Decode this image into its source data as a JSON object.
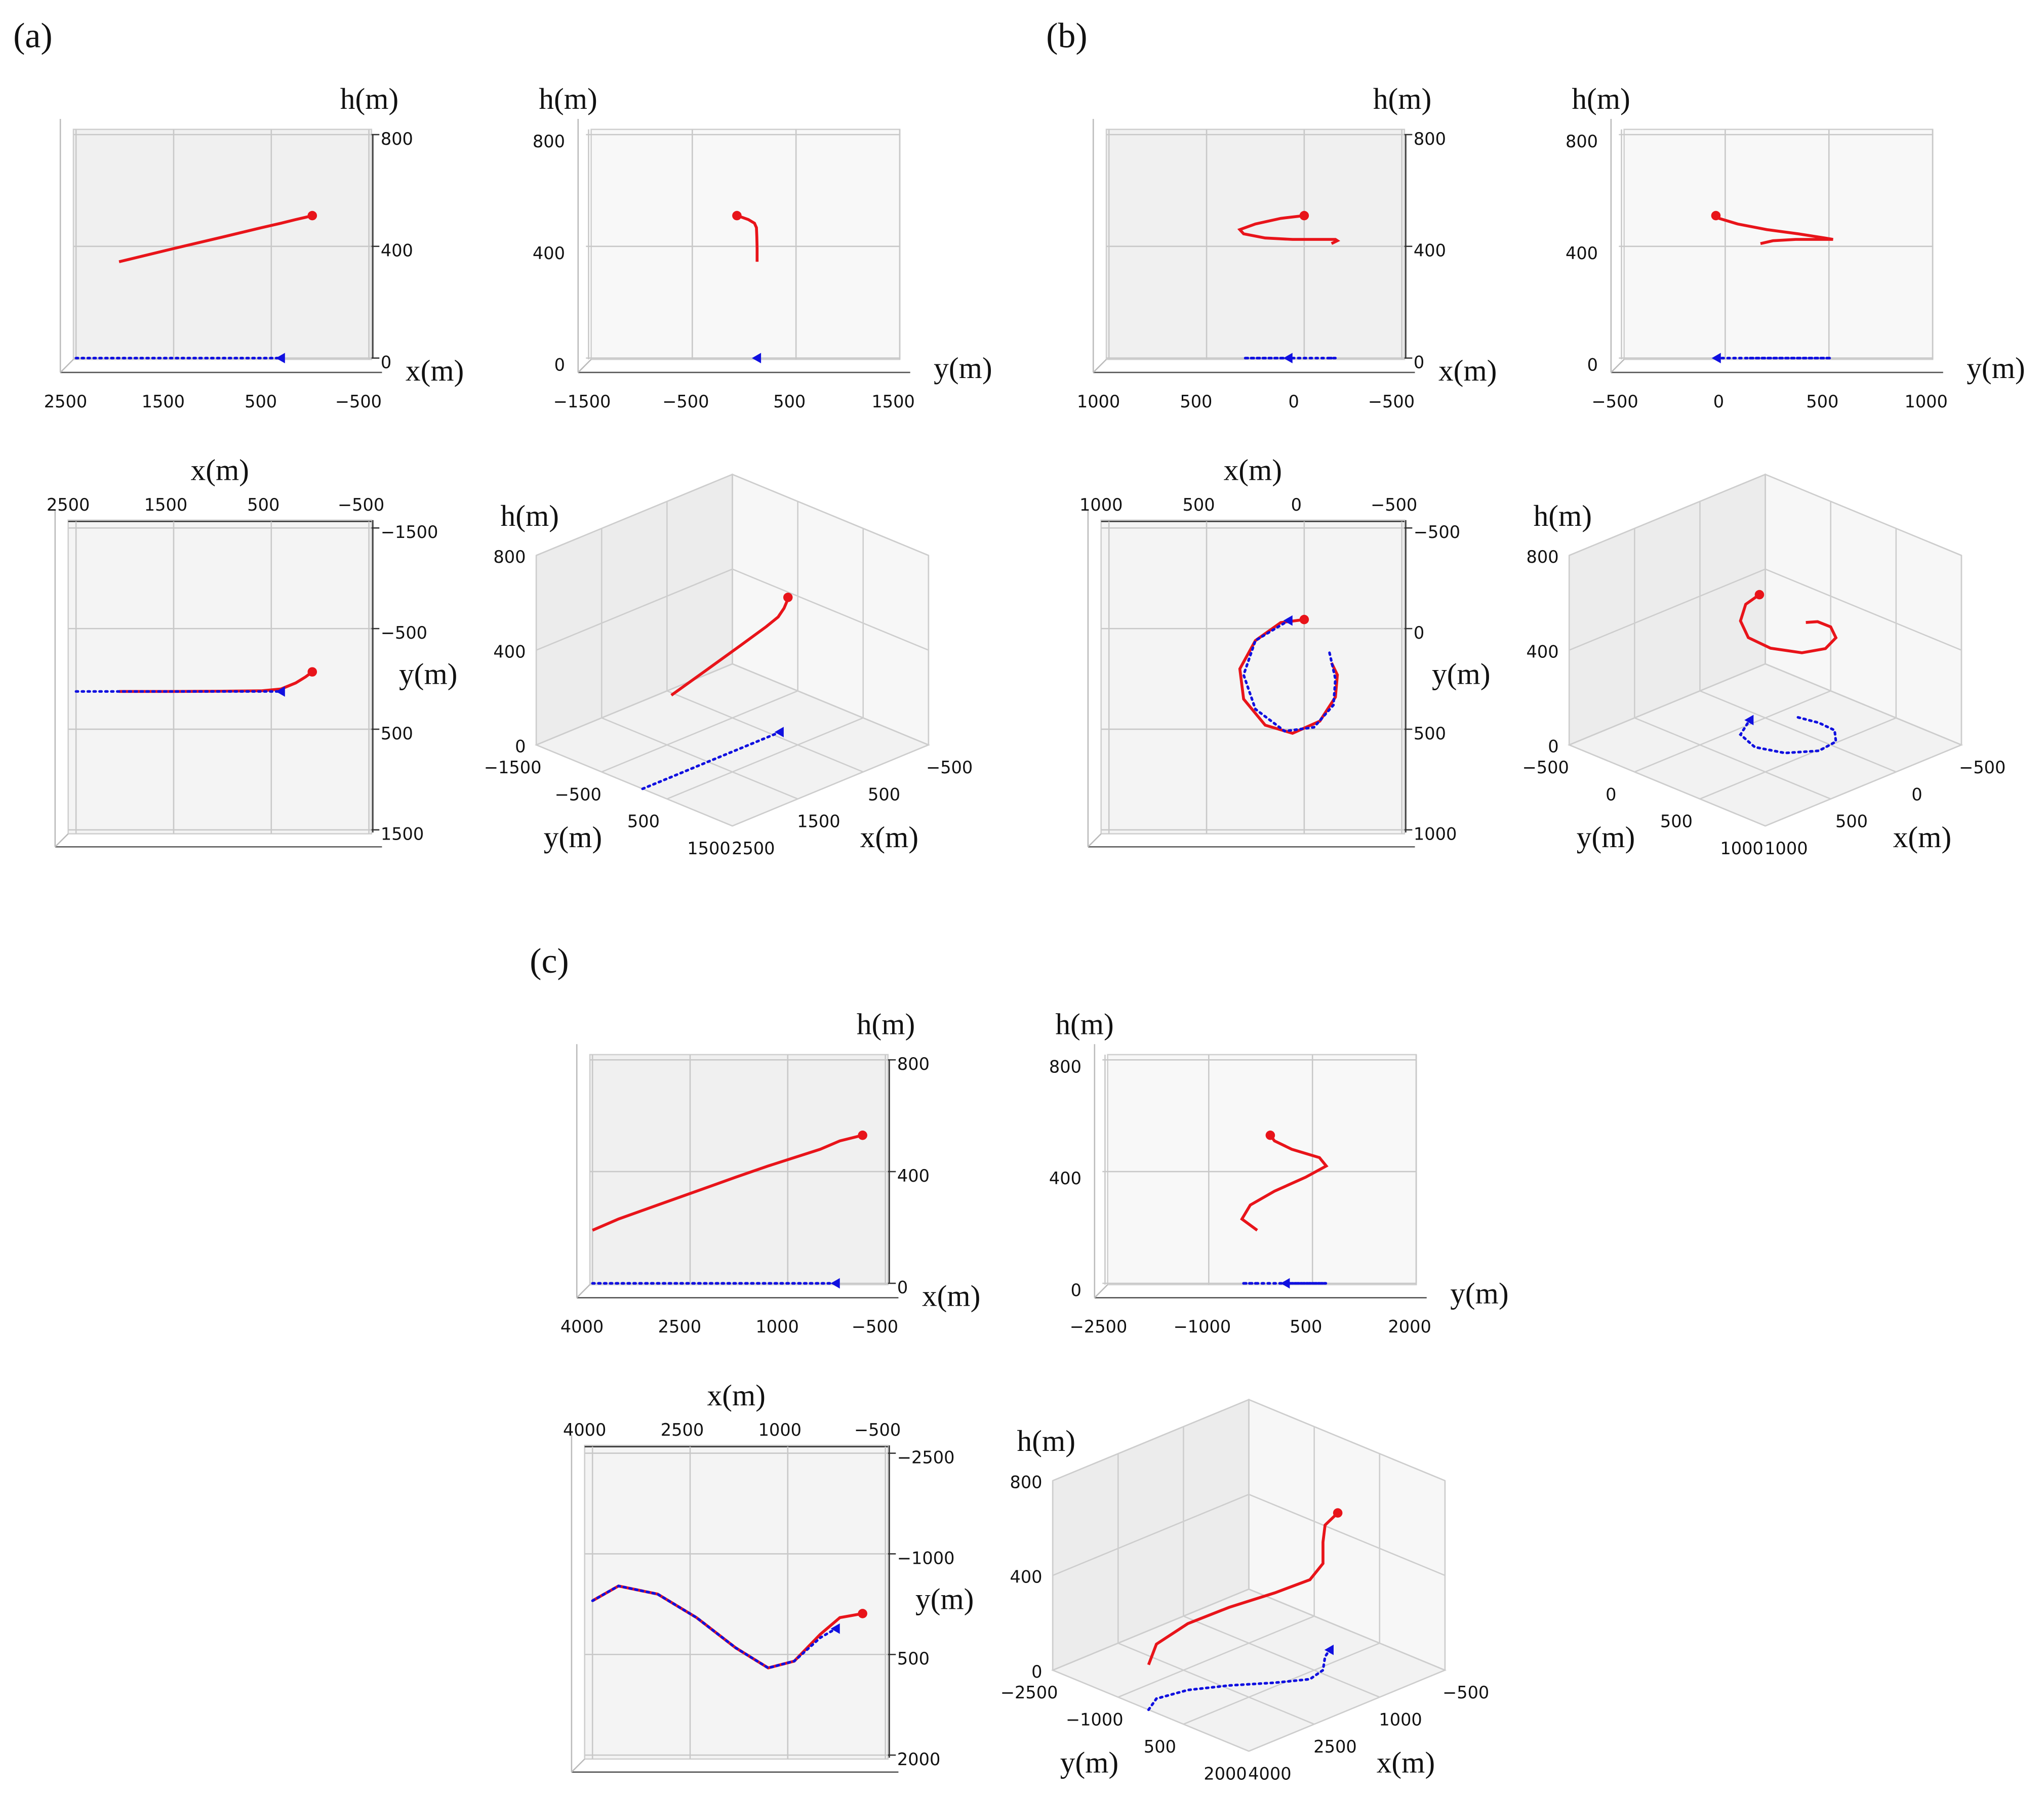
{
  "chart_data": [
    {
      "type": "line3d",
      "title": "(a)",
      "xlabel": "x(m)",
      "ylabel": "y(m)",
      "zlabel": "h(m)",
      "xlim": [
        -500,
        2500
      ],
      "ylim": [
        -1500,
        1500
      ],
      "zlim": [
        0,
        800
      ],
      "xticks": [
        {
          "value": -500,
          "label": "−500"
        },
        500,
        1500,
        2500
      ],
      "yticks": [
        {
          "value": -1500,
          "label": "−1500"
        },
        {
          "value": -500,
          "label": "−500"
        },
        500,
        1500
      ],
      "zticks": [
        0,
        400,
        800
      ],
      "series": [
        {
          "color": "#e8141a",
          "linestyle": "solid",
          "marker": "circle",
          "x": [
            2060,
            1500,
            1000,
            600,
            400,
            250,
            150,
            80
          ],
          "y": [
            125,
            125,
            122,
            118,
            100,
            40,
            -20,
            -70
          ],
          "z": [
            345,
            392,
            433,
            467,
            483,
            496,
            504,
            510
          ]
        },
        {
          "color": "#1010e0",
          "linestyle": "dotted",
          "marker": "triangle",
          "x": [
            2500,
            2000,
            1500,
            1000,
            700,
            400
          ],
          "y": [
            125,
            125,
            125,
            125,
            125,
            125
          ],
          "z": [
            0,
            0,
            0,
            0,
            0,
            0
          ]
        }
      ]
    },
    {
      "type": "line3d",
      "title": "(b)",
      "xlabel": "x(m)",
      "ylabel": "y(m)",
      "zlabel": "h(m)",
      "xlim": [
        -500,
        1000
      ],
      "ylim": [
        -500,
        1000
      ],
      "zlim": [
        0,
        800
      ],
      "xticks": [
        {
          "value": -500,
          "label": "−500"
        },
        0,
        500,
        1000
      ],
      "yticks": [
        {
          "value": -500,
          "label": "−500"
        },
        0,
        500,
        1000
      ],
      "zticks": [
        0,
        400,
        800
      ],
      "series": [
        {
          "color": "#e8141a",
          "linestyle": "solid",
          "marker": "circle",
          "x": [
            -140,
            -170,
            -160,
            -80,
            60,
            200,
            310,
            330,
            250,
            120,
            0
          ],
          "y": [
            170,
            230,
            340,
            460,
            520,
            480,
            350,
            200,
            60,
            -30,
            -45
          ],
          "z": [
            410,
            420,
            425,
            425,
            425,
            430,
            445,
            460,
            480,
            500,
            510
          ]
        },
        {
          "color": "#1010e0",
          "linestyle": "dotted",
          "marker": "triangle",
          "x": [
            -130,
            -160,
            -150,
            -50,
            100,
            250,
            310,
            250,
            80
          ],
          "y": [
            120,
            250,
            380,
            490,
            510,
            400,
            230,
            60,
            -40
          ],
          "z": [
            0,
            0,
            0,
            0,
            0,
            0,
            0,
            0,
            0
          ]
        }
      ]
    },
    {
      "type": "line3d",
      "title": "(c)",
      "xlabel": "x(m)",
      "ylabel": "y(m)",
      "zlabel": "h(m)",
      "xlim": [
        -500,
        4000
      ],
      "ylim": [
        -2500,
        2000
      ],
      "zlim": [
        0,
        800
      ],
      "xticks": [
        {
          "value": -500,
          "label": "−500"
        },
        1000,
        2500,
        4000
      ],
      "yticks": [
        {
          "value": -2500,
          "label": "−2500"
        },
        {
          "value": -1000,
          "label": "−1000"
        },
        500,
        2000
      ],
      "zticks": [
        0,
        400,
        800
      ],
      "series": [
        {
          "color": "#e8141a",
          "linestyle": "solid",
          "marker": "circle",
          "x": [
            4000,
            3600,
            3000,
            2400,
            1800,
            1300,
            900,
            500,
            200,
            -150
          ],
          "y": [
            -300,
            -520,
            -400,
            -50,
            400,
            700,
            600,
            200,
            -50,
            -110
          ],
          "z": [
            190,
            230,
            280,
            330,
            380,
            420,
            450,
            480,
            510,
            530
          ]
        },
        {
          "color": "#1010e0",
          "linestyle": "dotted",
          "marker": "triangle",
          "x": [
            4000,
            3600,
            3000,
            2400,
            1800,
            1300,
            900,
            500,
            260
          ],
          "y": [
            -300,
            -520,
            -400,
            -50,
            400,
            700,
            600,
            250,
            115
          ],
          "z": [
            0,
            0,
            0,
            0,
            0,
            0,
            0,
            0,
            0
          ]
        }
      ]
    }
  ]
}
